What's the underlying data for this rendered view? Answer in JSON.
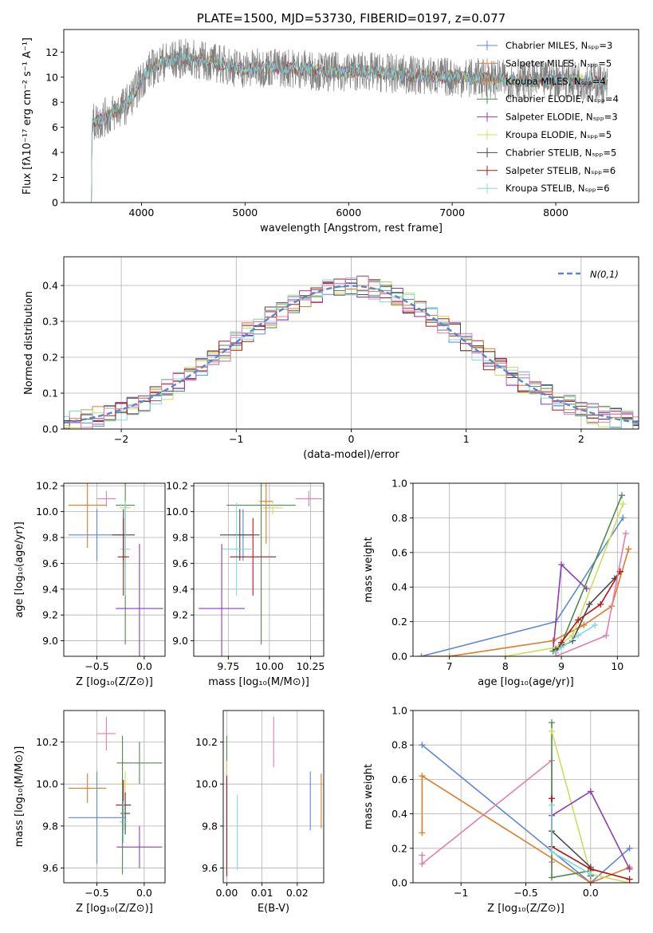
{
  "colors": {
    "Chabrier MILES": "#5b87d6",
    "Salpeter MILES": "#e6824a",
    "Kroupa MILES": "#e07b28",
    "Chabrier ELODIE": "#4f8a4f",
    "Salpeter ELODIE": "#8e3bb0",
    "Kroupa ELODIE": "#c8e05a",
    "Chabrier STELIB": "#4a4a4a",
    "Salpeter STELIB": "#b01818",
    "Kroupa STELIB": "#84d8e0",
    "pink": "#e07fb0",
    "nfit": "#5a86cf"
  },
  "chart_data": [
    {
      "id": "spectrum",
      "type": "line",
      "title": "PLATE=1500, MJD=53730, FIBERID=0197, z=0.077",
      "xlabel": "wavelength [Angstrom, rest frame]",
      "ylabel": "Flux [fλ10⁻¹⁷ erg cm⁻² s⁻¹ A⁻¹]",
      "xlim": [
        3250,
        8800
      ],
      "ylim": [
        0,
        13.8
      ],
      "grid": false,
      "legend": "right",
      "xticks": [
        4000,
        5000,
        6000,
        7000,
        8000
      ],
      "yticks": [
        0,
        2,
        4,
        6,
        8,
        10,
        12
      ],
      "legend_entries": [
        "Chabrier MILES, N_SSP=3",
        "Salpeter MILES, N_SSP=5",
        "Kroupa MILES, N_SSP=4",
        "Chabrier ELODIE, N_SSP=4",
        "Salpeter ELODIE, N_SSP=3",
        "Kroupa ELODIE, N_SSP=5",
        "Chabrier STELIB, N_SSP=5",
        "Salpeter STELIB, N_SSP=6",
        "Kroupa STELIB, N_SSP=6"
      ],
      "continuum": {
        "x": [
          3500,
          3700,
          3850,
          3950,
          4050,
          4200,
          4400,
          4600,
          4800,
          5000,
          5200,
          5500,
          5800,
          6100,
          6400,
          6700,
          7000,
          7300,
          7500,
          7800,
          8100,
          8400,
          8500
        ],
        "y": [
          6.2,
          7.0,
          7.8,
          9.0,
          10.4,
          11.2,
          11.5,
          11.3,
          11.0,
          10.6,
          10.8,
          10.7,
          10.4,
          10.5,
          10.3,
          10.1,
          10.0,
          9.9,
          9.8,
          9.7,
          9.9,
          9.6,
          9.3
        ]
      }
    },
    {
      "id": "residuals",
      "type": "bar",
      "xlabel": "(data-model)/error",
      "ylabel": "Normed distribution",
      "xlim": [
        -2.5,
        2.5
      ],
      "ylim": [
        0,
        0.48
      ],
      "grid": true,
      "legend": "top-right",
      "xticks": [
        -2,
        -1,
        0,
        1,
        2
      ],
      "yticks": [
        0.0,
        0.1,
        0.2,
        0.3,
        0.4
      ],
      "legend_entries": [
        "N(0,1)"
      ],
      "bin_width": 0.1
    },
    {
      "id": "age_vs_Z",
      "type": "scatter",
      "xlabel": "Z [log₁₀(Z/Z⊙)]",
      "ylabel": "age  [log₁₀(age/yr)]",
      "xlim": [
        -0.85,
        0.22
      ],
      "ylim": [
        8.88,
        10.22
      ],
      "grid": true,
      "xticks": [
        -0.5,
        0.0
      ],
      "yticks": [
        9.0,
        9.2,
        9.4,
        9.6,
        9.8,
        10.0,
        10.2
      ],
      "points": [
        {
          "c": "Kroupa MILES",
          "x": -0.6,
          "xe": 0.2,
          "y": 10.05,
          "ye": 0.33
        },
        {
          "c": "pink",
          "x": -0.4,
          "xe": 0.1,
          "y": 10.1,
          "ye": 0.06
        },
        {
          "c": "Chabrier MILES",
          "x": -0.5,
          "xe": 0.3,
          "y": 9.82,
          "ye": 0.2
        },
        {
          "c": "Chabrier ELODIE",
          "x": -0.2,
          "xe": 0.1,
          "y": 10.05,
          "ye": 1.08
        },
        {
          "c": "Kroupa ELODIE",
          "x": -0.2,
          "xe": 0.06,
          "y": 10.03,
          "ye": 0.05
        },
        {
          "c": "Chabrier STELIB",
          "x": -0.22,
          "xe": 0.12,
          "y": 9.82,
          "ye": 0.2
        },
        {
          "c": "Kroupa STELIB",
          "x": -0.2,
          "xe": 0.05,
          "y": 9.71,
          "ye": 0.36
        },
        {
          "c": "Salpeter STELIB",
          "x": -0.22,
          "xe": 0.06,
          "y": 9.65,
          "ye": 0.3
        },
        {
          "c": "Salpeter ELODIE",
          "x": -0.05,
          "xe": 0.25,
          "y": 9.25,
          "ye": 0.5
        }
      ]
    },
    {
      "id": "age_vs_mass",
      "type": "scatter",
      "xlabel": "mass [log₁₀(M/M⊙)]",
      "ylabel": "",
      "xlim": [
        9.54,
        10.33
      ],
      "ylim": [
        8.88,
        10.22
      ],
      "grid": true,
      "xticks": [
        9.75,
        10.0,
        10.25
      ],
      "yticks": [
        9.0,
        9.2,
        9.4,
        9.6,
        9.8,
        10.0,
        10.2
      ],
      "points": [
        {
          "c": "Chabrier ELODIE",
          "x": 9.95,
          "xe": 0.21,
          "y": 10.05,
          "ye": 1.08
        },
        {
          "c": "Kroupa ELODIE",
          "x": 10.02,
          "xe": 0.06,
          "y": 10.03,
          "ye": 0.05
        },
        {
          "c": "Kroupa MILES",
          "x": 9.98,
          "xe": 0.04,
          "y": 10.08,
          "ye": 0.33
        },
        {
          "c": "pink",
          "x": 10.24,
          "xe": 0.08,
          "y": 10.1,
          "ye": 0.06
        },
        {
          "c": "Chabrier MILES",
          "x": 9.84,
          "xe": 0.06,
          "y": 9.82,
          "ye": 0.2
        },
        {
          "c": "Chabrier STELIB",
          "x": 9.82,
          "xe": 0.12,
          "y": 9.82,
          "ye": 0.2
        },
        {
          "c": "Kroupa STELIB",
          "x": 9.8,
          "xe": 0.09,
          "y": 9.71,
          "ye": 0.36
        },
        {
          "c": "Salpeter STELIB",
          "x": 9.9,
          "xe": 0.14,
          "y": 9.65,
          "ye": 0.3
        },
        {
          "c": "Salpeter ELODIE",
          "x": 9.71,
          "xe": 0.14,
          "y": 9.25,
          "ye": 0.5
        }
      ]
    },
    {
      "id": "weight_vs_age",
      "type": "line",
      "xlabel": "age  [log₁₀(age/yr)]",
      "ylabel": "mass weight",
      "xlim": [
        6.35,
        10.38
      ],
      "ylim": [
        0,
        1.0
      ],
      "grid": true,
      "xticks": [
        7,
        8,
        9,
        10
      ],
      "yticks": [
        0.0,
        0.2,
        0.4,
        0.6,
        0.8,
        1.0
      ],
      "series": [
        {
          "c": "Chabrier MILES",
          "x": [
            6.5,
            8.9,
            10.1
          ],
          "y": [
            0.0,
            0.2,
            0.8
          ]
        },
        {
          "c": "Kroupa MILES",
          "x": [
            6.5,
            7.0,
            8.85,
            9.4,
            9.9,
            10.2
          ],
          "y": [
            0.0,
            0.0,
            0.09,
            0.18,
            0.29,
            0.62
          ]
        },
        {
          "c": "Salpeter ELODIE",
          "x": [
            8.85,
            9.0,
            9.45
          ],
          "y": [
            0.03,
            0.53,
            0.39
          ]
        },
        {
          "c": "Chabrier ELODIE",
          "x": [
            8.85,
            9.0,
            10.08
          ],
          "y": [
            0.03,
            0.07,
            0.93
          ]
        },
        {
          "c": "Kroupa ELODIE",
          "x": [
            8.0,
            8.9,
            9.2,
            10.1
          ],
          "y": [
            0.0,
            0.05,
            0.12,
            0.88
          ]
        },
        {
          "c": "Chabrier STELIB",
          "x": [
            8.9,
            9.2,
            9.5,
            9.95,
            10.05
          ],
          "y": [
            0.04,
            0.09,
            0.3,
            0.45,
            0.49
          ]
        },
        {
          "c": "Salpeter STELIB",
          "x": [
            8.9,
            9.0,
            9.3,
            9.7,
            10.05
          ],
          "y": [
            0.02,
            0.08,
            0.21,
            0.3,
            0.49
          ]
        },
        {
          "c": "Kroupa STELIB",
          "x": [
            8.9,
            9.0,
            9.3,
            9.6
          ],
          "y": [
            0.02,
            0.05,
            0.12,
            0.18
          ]
        },
        {
          "c": "pink",
          "x": [
            8.9,
            9.8,
            10.15
          ],
          "y": [
            0.0,
            0.12,
            0.71
          ]
        }
      ]
    },
    {
      "id": "mass_vs_Z",
      "type": "scatter",
      "xlabel": "Z [log₁₀(Z/Z⊙)]",
      "ylabel": "mass [log₁₀(M/M⊙)]",
      "xlim": [
        -0.85,
        0.22
      ],
      "ylim": [
        9.53,
        10.35
      ],
      "grid": true,
      "xticks": [
        -0.5,
        0.0
      ],
      "yticks": [
        9.6,
        9.8,
        10.0,
        10.2
      ],
      "points": [
        {
          "c": "pink",
          "x": -0.4,
          "xe": 0.1,
          "y": 10.24,
          "ye": 0.08
        },
        {
          "c": "Chabrier ELODIE",
          "x": -0.05,
          "xe": 0.24,
          "y": 10.1,
          "ye": 0.1
        },
        {
          "c": "Kroupa ELODIE",
          "x": -0.2,
          "xe": 0.08,
          "y": 10.0,
          "ye": 0.06
        },
        {
          "c": "Kroupa MILES",
          "x": -0.6,
          "xe": 0.2,
          "y": 9.98,
          "ye": 0.07
        },
        {
          "c": "Salpeter STELIB",
          "x": -0.22,
          "xe": 0.08,
          "y": 9.9,
          "ye": 0.12
        },
        {
          "c": "Chabrier STELIB",
          "x": -0.2,
          "xe": 0.05,
          "y": 9.86,
          "ye": 0.1
        },
        {
          "c": "Chabrier MILES",
          "x": -0.5,
          "xe": 0.3,
          "y": 9.84,
          "ye": 0.22
        },
        {
          "c": "Kroupa STELIB",
          "x": -0.22,
          "xe": 0.04,
          "y": 9.82,
          "ye": 0.1
        },
        {
          "c": "Salpeter ELODIE",
          "x": -0.05,
          "xe": 0.24,
          "y": 9.7,
          "ye": 0.1
        },
        {
          "c": "Chabrier ELODIE",
          "x": -0.23,
          "xe": 0.0,
          "y": 9.9,
          "ye": 0.33
        }
      ]
    },
    {
      "id": "mass_vs_ebv",
      "type": "scatter",
      "xlabel": "E(B-V)",
      "ylabel": "",
      "xlim": [
        -0.001,
        0.0275
      ],
      "ylim": [
        9.53,
        10.35
      ],
      "grid": true,
      "xticks": [
        0.0,
        0.01,
        0.02
      ],
      "yticks": [
        9.6,
        9.8,
        10.0,
        10.2
      ],
      "points": [
        {
          "c": "Chabrier ELODIE",
          "x": 0.0,
          "xe": 0,
          "y": 9.9,
          "ye": 0.33
        },
        {
          "c": "Kroupa ELODIE",
          "x": 0.0,
          "xe": 0,
          "y": 10.05,
          "ye": 0.06
        },
        {
          "c": "Salpeter STELIB",
          "x": 0.0,
          "xe": 0,
          "y": 9.8,
          "ye": 0.24
        },
        {
          "c": "Kroupa STELIB",
          "x": 0.003,
          "xe": 0,
          "y": 9.77,
          "ye": 0.18
        },
        {
          "c": "pink",
          "x": 0.0133,
          "xe": 0,
          "y": 10.2,
          "ye": 0.12
        },
        {
          "c": "Chabrier MILES",
          "x": 0.0237,
          "xe": 0,
          "y": 9.92,
          "ye": 0.14
        },
        {
          "c": "Kroupa MILES",
          "x": 0.0268,
          "xe": 0,
          "y": 9.92,
          "ye": 0.13
        }
      ]
    },
    {
      "id": "weight_vs_Z",
      "type": "line",
      "xlabel": "Z [log₁₀(Z/Z⊙)]",
      "ylabel": "mass weight",
      "xlim": [
        -1.37,
        0.37
      ],
      "ylim": [
        0,
        1.0
      ],
      "grid": true,
      "xticks": [
        -1.0,
        -0.5,
        0.0
      ],
      "yticks": [
        0.0,
        0.2,
        0.4,
        0.6,
        0.8,
        1.0
      ],
      "series": [
        {
          "c": "Chabrier MILES",
          "x": [
            -1.3,
            0.0,
            0.3
          ],
          "y": [
            0.8,
            0.0,
            0.2
          ]
        },
        {
          "c": "Kroupa MILES",
          "x": [
            -1.3,
            -1.3,
            0.0,
            0.3
          ],
          "y": [
            0.29,
            0.62,
            0.0,
            0.09
          ]
        },
        {
          "c": "pink",
          "x": [
            -1.3,
            -1.3,
            -0.3,
            -0.3
          ],
          "y": [
            0.16,
            0.11,
            0.71,
            0.12
          ]
        },
        {
          "c": "Chabrier ELODIE",
          "x": [
            -0.3,
            -0.3,
            0.0
          ],
          "y": [
            0.93,
            0.03,
            0.07
          ]
        },
        {
          "c": "Kroupa ELODIE",
          "x": [
            -0.3,
            0.0,
            0.3
          ],
          "y": [
            0.88,
            0.05,
            0.0
          ]
        },
        {
          "c": "Salpeter ELODIE",
          "x": [
            -0.3,
            0.0,
            0.3
          ],
          "y": [
            0.39,
            0.53,
            0.08
          ]
        },
        {
          "c": "Chabrier STELIB",
          "x": [
            -0.3,
            -0.3,
            0.0,
            0.0
          ],
          "y": [
            0.49,
            0.3,
            0.09,
            0.04
          ]
        },
        {
          "c": "Salpeter STELIB",
          "x": [
            -0.3,
            -0.3,
            0.0,
            0.3
          ],
          "y": [
            0.49,
            0.21,
            0.08,
            0.02
          ]
        },
        {
          "c": "Kroupa STELIB",
          "x": [
            -0.3,
            -0.3,
            0.0
          ],
          "y": [
            0.45,
            0.18,
            0.05
          ]
        }
      ]
    }
  ]
}
